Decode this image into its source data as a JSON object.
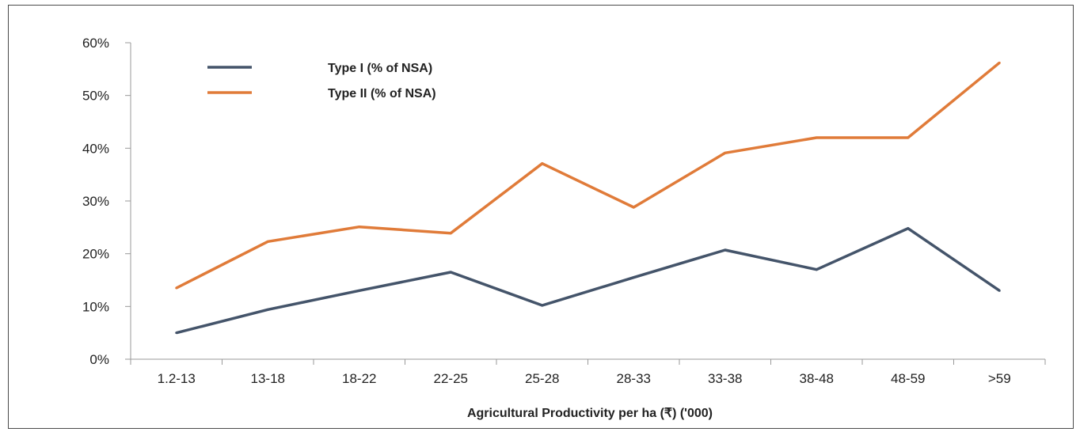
{
  "chart_data": {
    "type": "line",
    "title": "",
    "xlabel": "Agricultural Productivity per ha (₹) ('000)",
    "ylabel": "",
    "categories": [
      "1.2-13",
      "13-18",
      "18-22",
      "22-25",
      "25-28",
      "28-33",
      "33-38",
      "38-48",
      "48-59",
      ">59"
    ],
    "yticks": [
      "0%",
      "10%",
      "20%",
      "30%",
      "40%",
      "50%",
      "60%"
    ],
    "ylim": [
      0,
      60
    ],
    "grid": false,
    "legend_position": "top-left",
    "series": [
      {
        "name": "Type I (% of NSA)",
        "color": "#44546a",
        "values": [
          5,
          9.4,
          13,
          16.5,
          10.2,
          15.5,
          20.7,
          17,
          24.8,
          13
        ]
      },
      {
        "name": "Type II (% of NSA)",
        "color": "#e07b39",
        "values": [
          13.5,
          22.3,
          25.1,
          23.9,
          37.1,
          28.8,
          39.1,
          42,
          42,
          56.2
        ]
      }
    ]
  }
}
